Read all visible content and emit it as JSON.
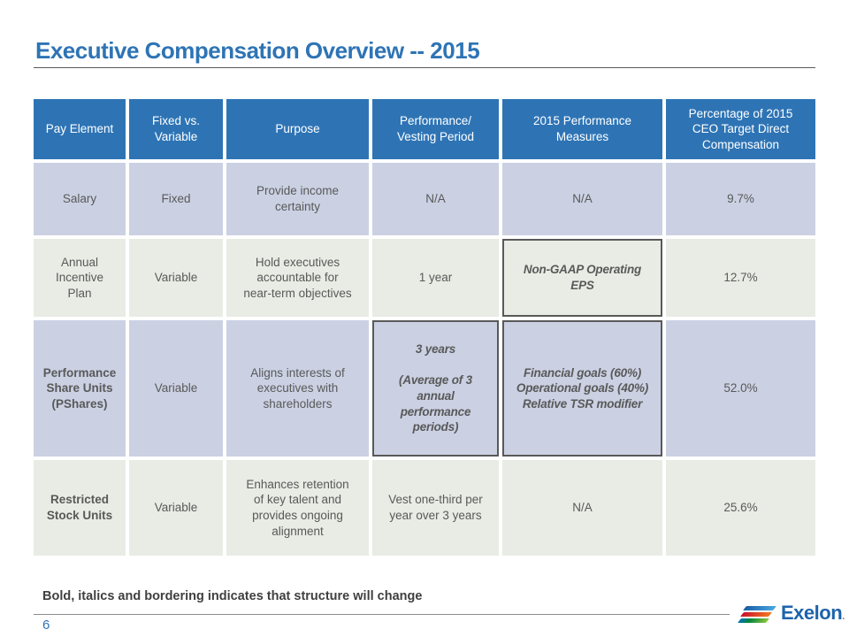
{
  "slide": {
    "title": "Executive Compensation Overview -- 2015",
    "footnote": "Bold, italics and bordering indicates that structure will change",
    "page_number": "6",
    "logo": {
      "text": "Exelon",
      "dot": "."
    }
  },
  "colors": {
    "header_bg": "#2e74b5",
    "title_blue": "#2e74b5",
    "row_lavender": "#cbd1e3",
    "row_graygreen": "#e9ece4",
    "body_text": "#595959",
    "changed_cell_border": "#595959",
    "logo_blue": "#1d63ab"
  },
  "table": {
    "headers": [
      "Pay Element",
      "Fixed vs.\nVariable",
      "Purpose",
      "Performance/\nVesting Period",
      "2015 Performance\nMeasures",
      "Percentage of 2015\nCEO Target Direct\nCompensation"
    ],
    "rows": [
      [
        "Salary",
        "Fixed",
        "Provide income\ncertainty",
        "N/A",
        "N/A",
        "9.7%"
      ],
      [
        "Annual\nIncentive\nPlan",
        "Variable",
        "Hold executives\naccountable for\nnear-term objectives",
        "1 year",
        "Non-GAAP Operating\nEPS",
        "12.7%"
      ],
      [
        "Performance\nShare Units\n(PShares)",
        "Variable",
        "Aligns interests of\nexecutives with\nshareholders",
        "3 years\n\n(Average of 3\nannual\nperformance\nperiods)",
        "Financial goals (60%)\nOperational goals (40%)\nRelative TSR modifier",
        "52.0%"
      ],
      [
        "Restricted\nStock Units",
        "Variable",
        "Enhances retention\nof key talent and\nprovides ongoing\nalignment",
        "Vest one-third per\nyear over 3 years",
        "N/A",
        "25.6%"
      ]
    ]
  }
}
